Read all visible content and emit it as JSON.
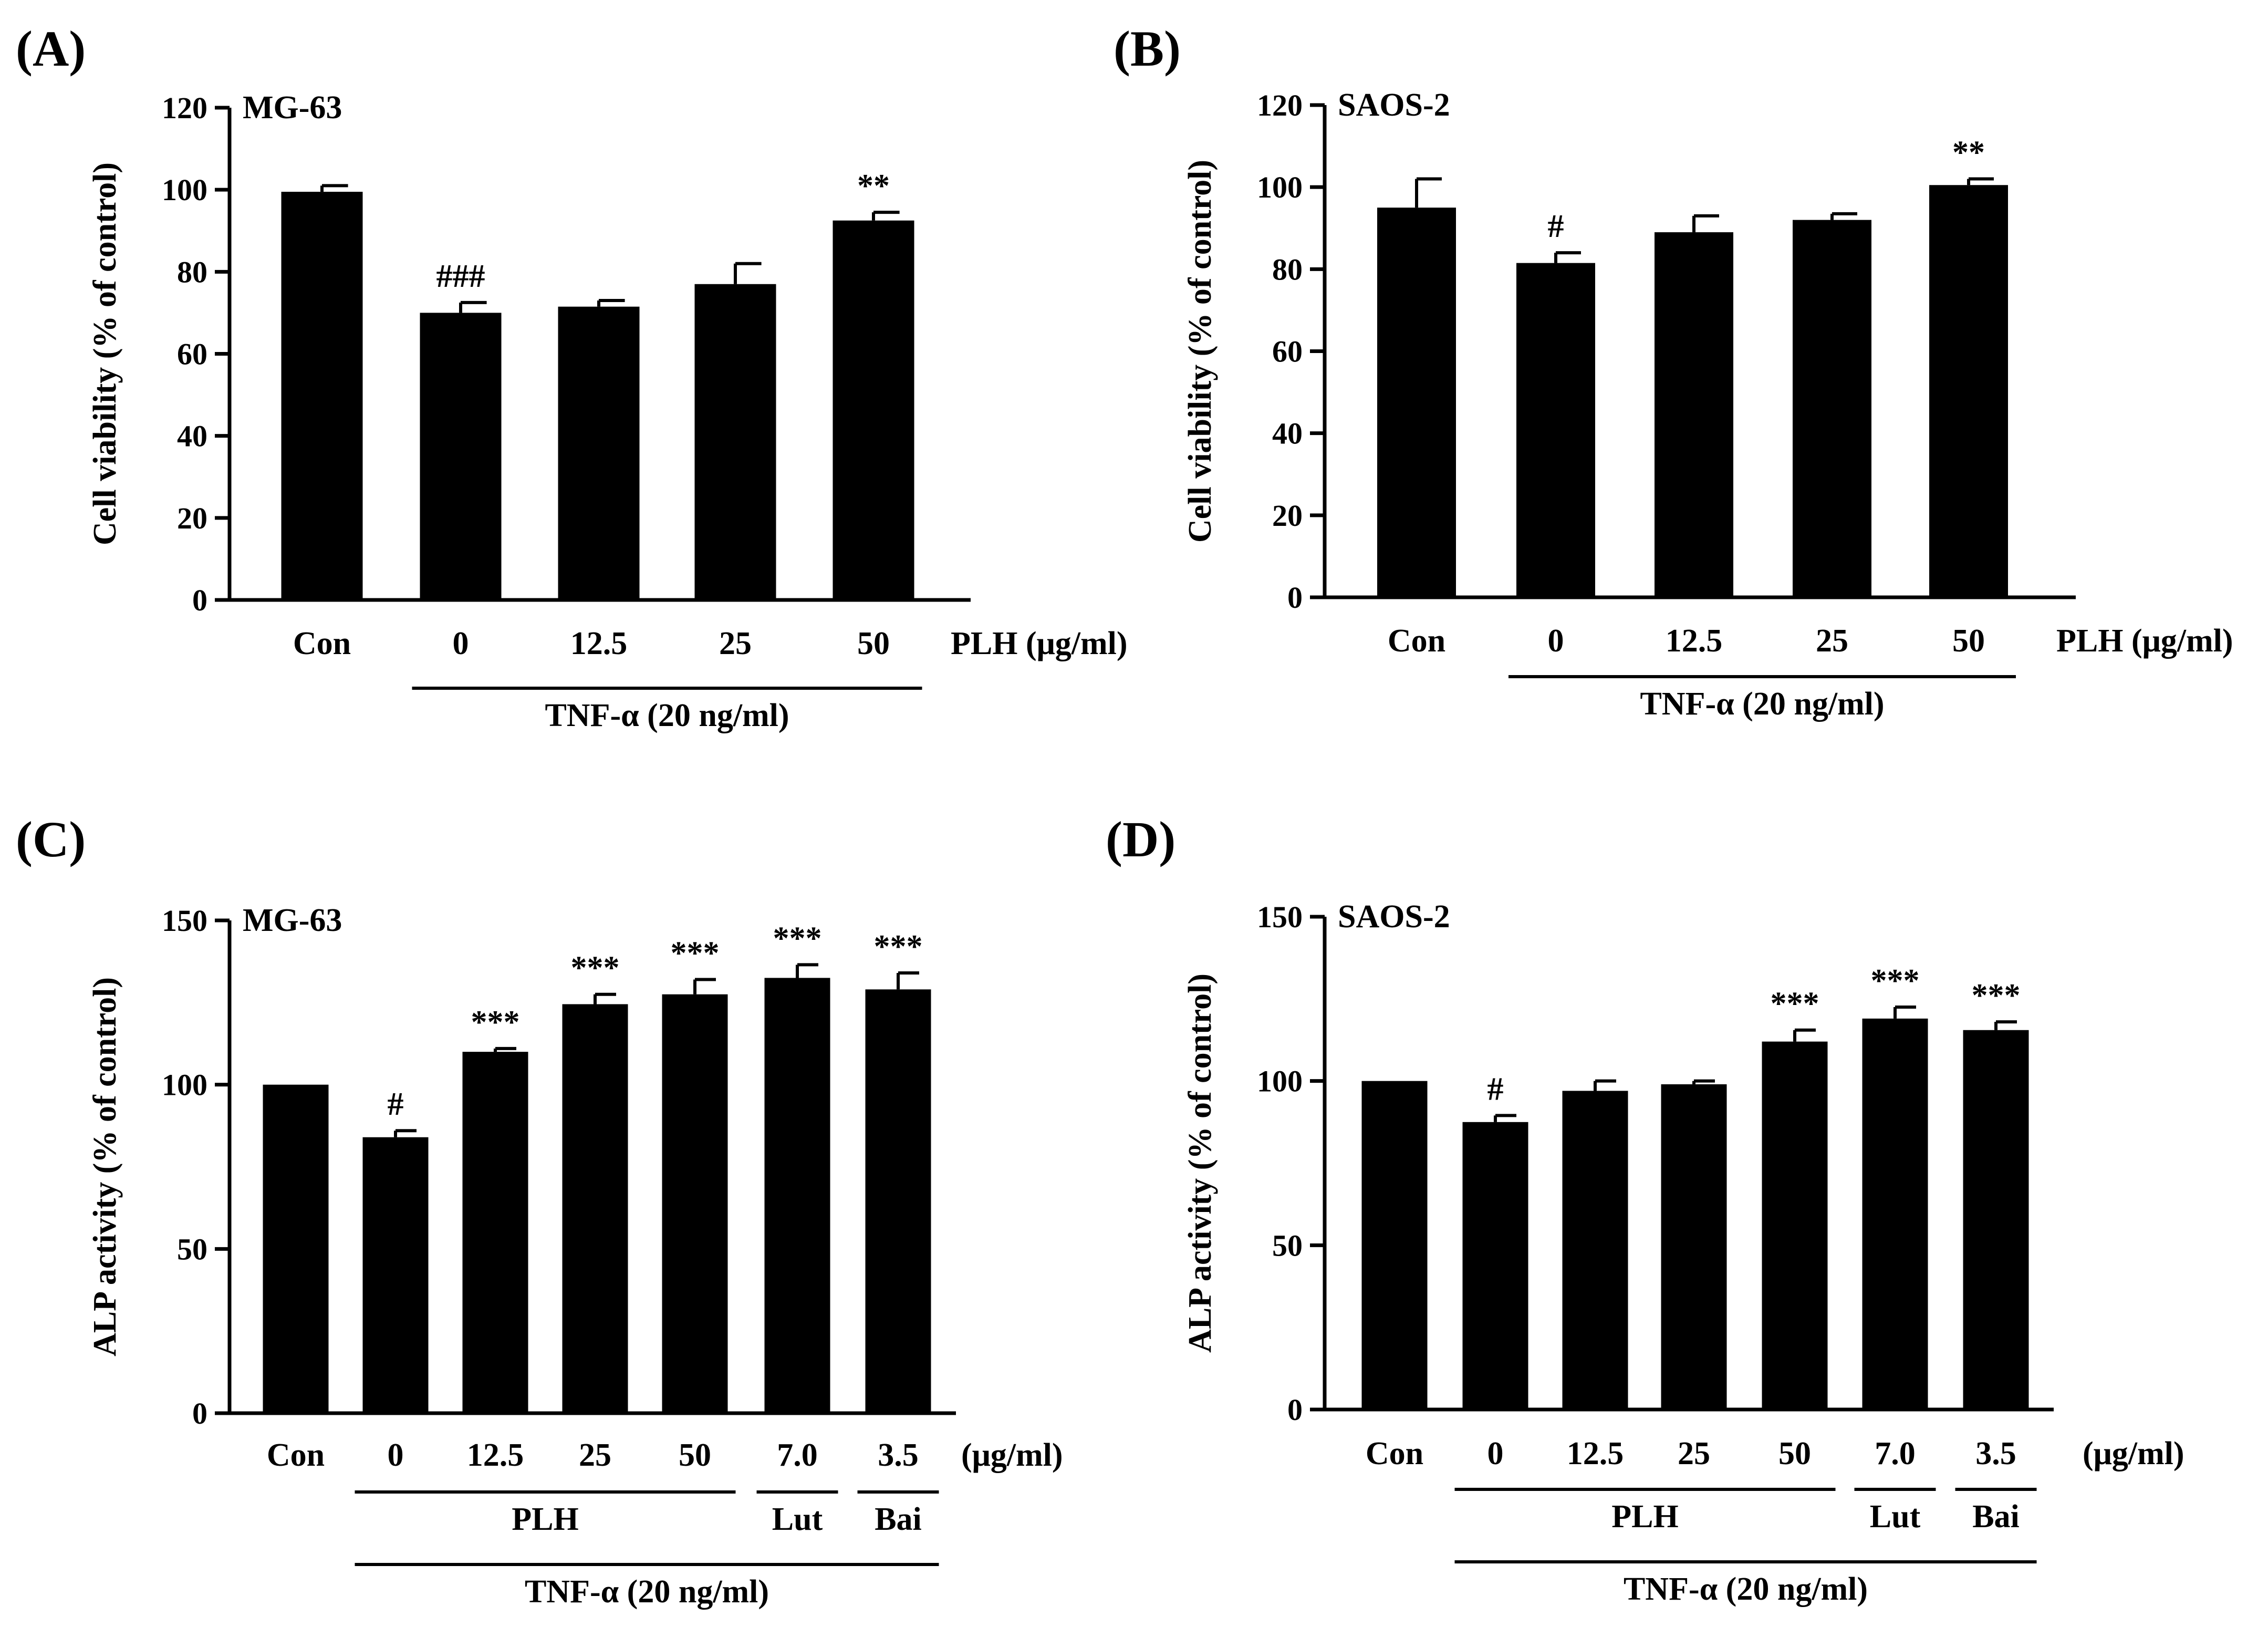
{
  "chart_data": [
    {
      "id": "A",
      "panel_label": "(A)",
      "cell_line": "MG-63",
      "type": "bar",
      "ylabel": "Cell viability (% of control)",
      "ylim": [
        0,
        120
      ],
      "yticks": [
        0,
        20,
        40,
        60,
        80,
        100,
        120
      ],
      "categories": [
        "Con",
        "0",
        "12.5",
        "25",
        "50"
      ],
      "values": [
        99.5,
        70,
        71.5,
        77,
        92.5
      ],
      "errors": [
        1.5,
        2.5,
        1.5,
        5,
        2
      ],
      "significance": [
        "",
        "###",
        "",
        "",
        "**"
      ],
      "unit_label": "PLH (μg/ml)",
      "groups": [
        {
          "label": "TNF-α (20 ng/ml)",
          "from": 1,
          "to": 4,
          "row": 1
        }
      ]
    },
    {
      "id": "B",
      "panel_label": "(B)",
      "cell_line": "SAOS-2",
      "type": "bar",
      "ylabel": "Cell viability (% of control)",
      "ylim": [
        0,
        120
      ],
      "yticks": [
        0,
        20,
        40,
        60,
        80,
        100,
        120
      ],
      "categories": [
        "Con",
        "0",
        "12.5",
        "25",
        "50"
      ],
      "values": [
        95,
        81.5,
        89,
        92,
        100.5
      ],
      "errors": [
        7,
        2.5,
        4,
        1.5,
        1.5
      ],
      "significance": [
        "",
        "#",
        "",
        "",
        "**"
      ],
      "unit_label": "PLH (μg/ml)",
      "groups": [
        {
          "label": "TNF-α (20 ng/ml)",
          "from": 1,
          "to": 4,
          "row": 1
        }
      ]
    },
    {
      "id": "C",
      "panel_label": "(C)",
      "cell_line": "MG-63",
      "type": "bar",
      "ylabel": "ALP activity (% of control)",
      "ylim": [
        0,
        150
      ],
      "yticks": [
        0,
        50,
        100,
        150
      ],
      "categories": [
        "Con",
        "0",
        "12.5",
        "25",
        "50",
        "7.0",
        "3.5"
      ],
      "values": [
        100,
        84,
        110,
        124.5,
        127.5,
        132.5,
        129
      ],
      "errors": [
        0,
        2,
        1,
        3,
        4.5,
        4,
        5
      ],
      "significance": [
        "",
        "#",
        "***",
        "***",
        "***",
        "***",
        "***"
      ],
      "unit_label": "(μg/ml)",
      "groups": [
        {
          "label": "PLH",
          "from": 1,
          "to": 4,
          "row": 1
        },
        {
          "label": "Lut",
          "from": 5,
          "to": 5,
          "row": 1
        },
        {
          "label": "Bai",
          "from": 6,
          "to": 6,
          "row": 1
        },
        {
          "label": "TNF-α (20 ng/ml)",
          "from": 1,
          "to": 6,
          "row": 2
        }
      ]
    },
    {
      "id": "D",
      "panel_label": "(D)",
      "cell_line": "SAOS-2",
      "type": "bar",
      "ylabel": "ALP activity (% of control)",
      "ylim": [
        0,
        150
      ],
      "yticks": [
        0,
        50,
        100,
        150
      ],
      "categories": [
        "Con",
        "0",
        "12.5",
        "25",
        "50",
        "7.0",
        "3.5"
      ],
      "values": [
        100,
        87.5,
        97,
        99,
        112,
        119,
        115.5
      ],
      "errors": [
        0,
        2,
        3,
        1,
        3.5,
        3.5,
        2.5
      ],
      "significance": [
        "",
        "#",
        "",
        "",
        "***",
        "***",
        "***"
      ],
      "unit_label": "(μg/ml)",
      "groups": [
        {
          "label": "PLH",
          "from": 1,
          "to": 4,
          "row": 1
        },
        {
          "label": "Lut",
          "from": 5,
          "to": 5,
          "row": 1
        },
        {
          "label": "Bai",
          "from": 6,
          "to": 6,
          "row": 1
        },
        {
          "label": "TNF-α (20 ng/ml)",
          "from": 1,
          "to": 6,
          "row": 2
        }
      ]
    }
  ]
}
